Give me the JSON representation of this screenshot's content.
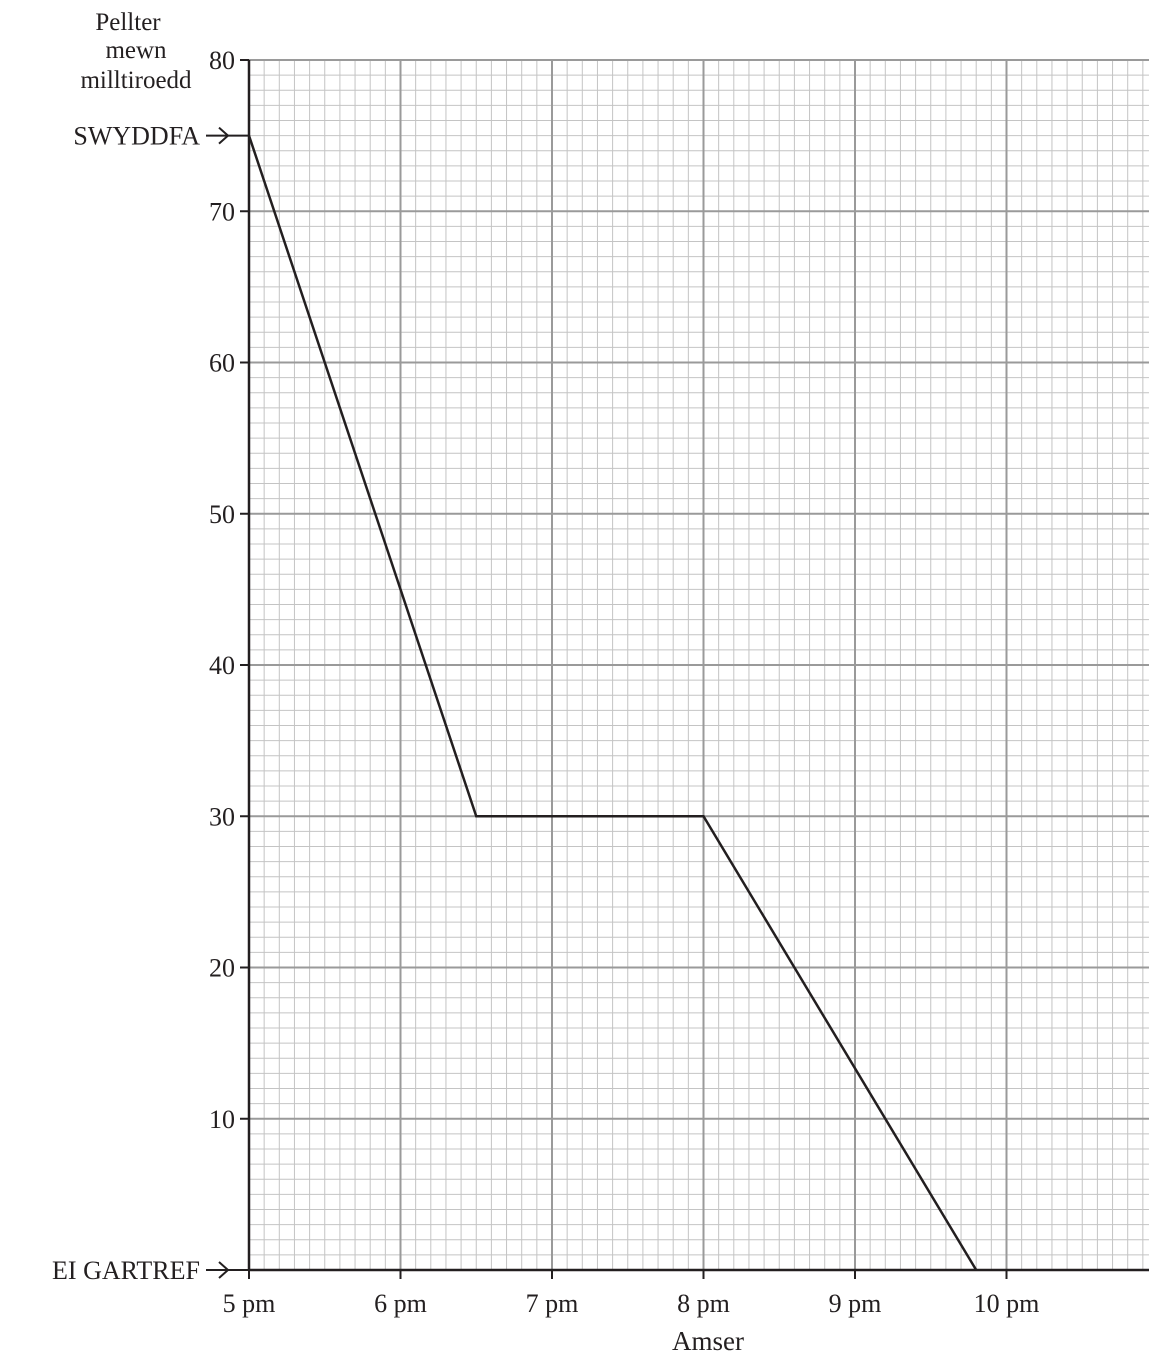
{
  "chart_data": {
    "type": "line",
    "ylabel_lines": [
      "Pellter",
      "mewn",
      "milltiroedd"
    ],
    "xlabel": "Amser",
    "x_ticks": [
      "5 pm",
      "6 pm",
      "7 pm",
      "8 pm",
      "9 pm",
      "10 pm"
    ],
    "x_tick_values": [
      17,
      18,
      19,
      20,
      21,
      22
    ],
    "xlim": [
      17,
      22.95
    ],
    "y_ticks": [
      "10",
      "20",
      "30",
      "40",
      "50",
      "60",
      "70",
      "80"
    ],
    "y_tick_values": [
      10,
      20,
      30,
      40,
      50,
      60,
      70,
      80
    ],
    "ylim": [
      0,
      80
    ],
    "grid": true,
    "markers": [
      {
        "label": "SWYDDFA",
        "y": 75
      },
      {
        "label": "EI GARTREF",
        "y": 0
      }
    ],
    "series": [
      {
        "x": [
          17,
          18.5,
          20,
          21.8
        ],
        "y": [
          75,
          30,
          30,
          0
        ]
      }
    ],
    "colors": {
      "line": "#231f20",
      "grid_major": "#9a9a9a",
      "grid_minor": "#c4c4c4",
      "axis": "#231f20"
    }
  }
}
